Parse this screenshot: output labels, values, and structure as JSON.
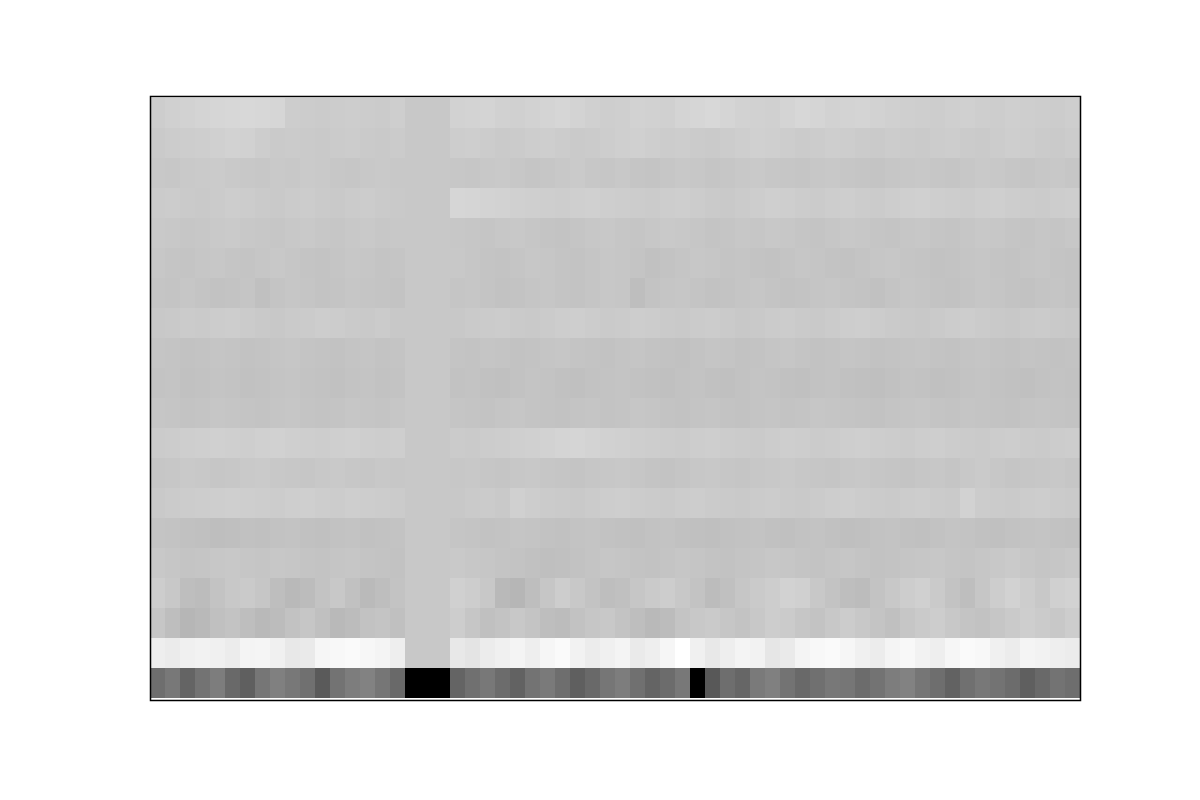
{
  "chart_data": {
    "type": "heatmap",
    "tick_labels": false,
    "cells": [
      [
        205,
        208,
        210,
        212,
        214,
        215,
        216,
        215,
        214,
        205,
        204,
        203,
        204,
        205,
        204,
        203,
        206,
        200,
        200,
        200,
        210,
        211,
        212,
        209,
        208,
        210,
        212,
        214,
        211,
        208,
        206,
        207,
        210,
        209,
        208,
        212,
        214,
        216,
        213,
        210,
        209,
        208,
        212,
        215,
        213,
        210,
        211,
        212,
        210,
        208,
        207,
        206,
        205,
        207,
        208,
        206,
        205,
        207,
        206,
        205,
        204,
        206
      ],
      [
        202,
        204,
        205,
        206,
        208,
        210,
        209,
        205,
        202,
        203,
        202,
        201,
        203,
        204,
        202,
        201,
        203,
        200,
        200,
        200,
        205,
        206,
        204,
        202,
        203,
        205,
        206,
        204,
        202,
        203,
        205,
        207,
        208,
        206,
        204,
        205,
        203,
        202,
        204,
        206,
        208,
        207,
        205,
        203,
        204,
        206,
        205,
        203,
        202,
        204,
        203,
        202,
        204,
        205,
        203,
        202,
        204,
        206,
        205,
        203,
        202,
        204
      ],
      [
        200,
        199,
        201,
        202,
        203,
        201,
        200,
        199,
        201,
        200,
        202,
        201,
        199,
        198,
        200,
        201,
        200,
        200,
        200,
        200,
        199,
        198,
        200,
        201,
        199,
        197,
        198,
        200,
        202,
        199,
        198,
        200,
        197,
        196,
        198,
        200,
        199,
        197,
        198,
        200,
        201,
        199,
        198,
        197,
        199,
        200,
        198,
        197,
        196,
        198,
        199,
        200,
        198,
        197,
        199,
        201,
        200,
        198,
        197,
        199,
        200,
        198
      ],
      [
        203,
        204,
        202,
        201,
        203,
        205,
        204,
        202,
        201,
        203,
        204,
        202,
        201,
        203,
        204,
        202,
        201,
        200,
        200,
        200,
        214,
        213,
        211,
        210,
        208,
        207,
        206,
        205,
        207,
        208,
        206,
        205,
        204,
        203,
        205,
        206,
        204,
        202,
        201,
        203,
        205,
        207,
        206,
        204,
        203,
        205,
        206,
        204,
        203,
        205,
        207,
        208,
        206,
        205,
        204,
        206,
        207,
        205,
        204,
        203,
        205,
        206
      ],
      [
        201,
        200,
        198,
        199,
        201,
        202,
        200,
        199,
        198,
        200,
        201,
        199,
        198,
        200,
        201,
        199,
        200,
        200,
        200,
        200,
        199,
        198,
        197,
        199,
        200,
        198,
        196,
        195,
        197,
        199,
        200,
        198,
        197,
        199,
        201,
        200,
        198,
        196,
        197,
        199,
        198,
        200,
        199,
        197,
        196,
        198,
        200,
        199,
        197,
        196,
        198,
        199,
        197,
        196,
        198,
        200,
        199,
        197,
        196,
        198,
        197,
        199
      ],
      [
        199,
        197,
        196,
        198,
        199,
        197,
        196,
        198,
        200,
        198,
        196,
        195,
        197,
        199,
        198,
        196,
        197,
        200,
        200,
        200,
        200,
        198,
        196,
        195,
        197,
        199,
        198,
        196,
        195,
        197,
        199,
        198,
        196,
        193,
        195,
        197,
        199,
        198,
        196,
        197,
        195,
        194,
        196,
        198,
        197,
        195,
        194,
        196,
        198,
        199,
        197,
        196,
        194,
        195,
        197,
        198,
        196,
        195,
        197,
        198,
        196,
        195
      ],
      [
        197,
        196,
        198,
        196,
        194,
        195,
        197,
        192,
        196,
        198,
        197,
        195,
        196,
        198,
        197,
        196,
        195,
        200,
        200,
        200,
        197,
        198,
        196,
        194,
        195,
        197,
        198,
        196,
        195,
        197,
        199,
        198,
        190,
        195,
        197,
        198,
        196,
        194,
        195,
        197,
        198,
        196,
        194,
        195,
        197,
        198,
        196,
        195,
        193,
        196,
        198,
        197,
        195,
        194,
        196,
        198,
        197,
        195,
        194,
        196,
        197,
        195
      ],
      [
        200,
        201,
        203,
        202,
        204,
        205,
        203,
        201,
        200,
        202,
        203,
        205,
        204,
        202,
        201,
        203,
        200,
        200,
        200,
        200,
        200,
        202,
        203,
        204,
        202,
        201,
        203,
        205,
        206,
        204,
        202,
        203,
        205,
        204,
        202,
        201,
        203,
        204,
        202,
        200,
        201,
        203,
        204,
        202,
        201,
        203,
        205,
        206,
        204,
        202,
        201,
        200,
        202,
        204,
        205,
        203,
        201,
        200,
        202,
        203,
        201,
        200
      ],
      [
        197,
        196,
        194,
        195,
        197,
        196,
        194,
        195,
        197,
        198,
        196,
        195,
        194,
        196,
        197,
        195,
        196,
        200,
        200,
        200,
        196,
        195,
        197,
        196,
        194,
        195,
        197,
        198,
        196,
        195,
        194,
        196,
        197,
        195,
        194,
        193,
        195,
        197,
        196,
        194,
        195,
        197,
        198,
        196,
        194,
        195,
        197,
        196,
        194,
        195,
        196,
        197,
        195,
        194,
        196,
        197,
        195,
        194,
        196,
        195,
        194,
        195
      ],
      [
        195,
        196,
        193,
        194,
        196,
        195,
        193,
        194,
        196,
        197,
        195,
        194,
        193,
        195,
        196,
        194,
        195,
        200,
        200,
        200,
        194,
        195,
        193,
        192,
        194,
        196,
        195,
        193,
        192,
        194,
        195,
        196,
        194,
        193,
        192,
        194,
        195,
        193,
        192,
        194,
        196,
        195,
        193,
        192,
        194,
        195,
        193,
        192,
        191,
        193,
        195,
        194,
        192,
        193,
        195,
        196,
        194,
        193,
        192,
        194,
        195,
        194
      ],
      [
        198,
        197,
        195,
        196,
        198,
        197,
        196,
        195,
        197,
        198,
        196,
        195,
        196,
        198,
        197,
        196,
        198,
        200,
        200,
        200,
        197,
        196,
        195,
        197,
        198,
        196,
        195,
        194,
        196,
        197,
        195,
        196,
        198,
        197,
        195,
        194,
        196,
        197,
        195,
        194,
        196,
        197,
        195,
        196,
        198,
        197,
        196,
        195,
        194,
        196,
        197,
        198,
        196,
        195,
        197,
        196,
        195,
        194,
        196,
        197,
        196,
        195
      ],
      [
        203,
        204,
        206,
        207,
        208,
        207,
        206,
        208,
        209,
        207,
        206,
        205,
        207,
        208,
        206,
        205,
        206,
        200,
        200,
        200,
        203,
        202,
        204,
        205,
        207,
        208,
        210,
        212,
        213,
        211,
        209,
        208,
        206,
        205,
        204,
        203,
        205,
        206,
        204,
        203,
        202,
        204,
        206,
        205,
        203,
        204,
        206,
        207,
        205,
        204,
        203,
        205,
        206,
        204,
        203,
        202,
        204,
        205,
        203,
        202,
        204,
        205
      ],
      [
        198,
        199,
        201,
        200,
        198,
        199,
        201,
        202,
        200,
        199,
        198,
        200,
        201,
        199,
        198,
        200,
        199,
        200,
        200,
        200,
        199,
        200,
        198,
        197,
        199,
        200,
        198,
        197,
        196,
        198,
        199,
        200,
        198,
        196,
        195,
        197,
        199,
        200,
        198,
        197,
        199,
        200,
        201,
        199,
        198,
        197,
        199,
        200,
        198,
        197,
        196,
        198,
        199,
        197,
        200,
        202,
        199,
        197,
        198,
        199,
        200,
        198
      ],
      [
        201,
        203,
        204,
        205,
        206,
        207,
        206,
        205,
        204,
        206,
        207,
        205,
        204,
        206,
        205,
        204,
        203,
        200,
        200,
        200,
        200,
        202,
        203,
        201,
        208,
        205,
        203,
        202,
        201,
        203,
        205,
        206,
        204,
        203,
        202,
        204,
        205,
        203,
        202,
        201,
        203,
        204,
        202,
        201,
        203,
        205,
        206,
        204,
        203,
        202,
        204,
        205,
        203,
        202,
        210,
        204,
        203,
        202,
        204,
        205,
        203,
        202
      ],
      [
        196,
        195,
        193,
        192,
        190,
        191,
        193,
        192,
        194,
        195,
        193,
        192,
        194,
        195,
        193,
        194,
        195,
        200,
        200,
        200,
        197,
        196,
        194,
        195,
        197,
        196,
        194,
        193,
        195,
        196,
        194,
        193,
        192,
        194,
        195,
        193,
        192,
        191,
        193,
        194,
        195,
        193,
        192,
        194,
        195,
        193,
        191,
        192,
        194,
        195,
        193,
        192,
        194,
        196,
        195,
        193,
        192,
        194,
        195,
        196,
        194,
        193
      ],
      [
        200,
        198,
        196,
        197,
        199,
        200,
        198,
        197,
        199,
        198,
        196,
        195,
        197,
        198,
        196,
        195,
        194,
        200,
        200,
        200,
        201,
        199,
        198,
        196,
        195,
        193,
        191,
        192,
        194,
        196,
        198,
        197,
        195,
        194,
        196,
        198,
        197,
        195,
        194,
        196,
        197,
        199,
        198,
        196,
        195,
        197,
        198,
        196,
        194,
        195,
        197,
        198,
        199,
        197,
        196,
        198,
        200,
        202,
        199,
        197,
        198,
        200
      ],
      [
        205,
        200,
        190,
        188,
        195,
        200,
        202,
        198,
        190,
        185,
        188,
        195,
        200,
        193,
        186,
        190,
        195,
        200,
        200,
        200,
        208,
        205,
        200,
        185,
        182,
        190,
        198,
        205,
        200,
        195,
        190,
        192,
        198,
        202,
        205,
        200,
        195,
        188,
        192,
        198,
        202,
        205,
        210,
        208,
        200,
        195,
        190,
        188,
        195,
        200,
        205,
        208,
        202,
        195,
        190,
        198,
        205,
        210,
        205,
        200,
        208,
        210
      ],
      [
        198,
        190,
        182,
        185,
        192,
        195,
        190,
        185,
        188,
        194,
        198,
        192,
        185,
        188,
        194,
        196,
        192,
        200,
        200,
        200,
        205,
        198,
        192,
        195,
        200,
        196,
        190,
        188,
        194,
        198,
        200,
        195,
        190,
        185,
        188,
        196,
        200,
        202,
        198,
        195,
        200,
        205,
        203,
        198,
        195,
        200,
        204,
        200,
        196,
        192,
        198,
        202,
        205,
        200,
        196,
        194,
        198,
        202,
        206,
        203,
        200,
        205
      ],
      [
        238,
        235,
        240,
        242,
        240,
        236,
        244,
        245,
        240,
        232,
        234,
        246,
        248,
        250,
        247,
        244,
        238,
        200,
        200,
        200,
        232,
        228,
        236,
        240,
        244,
        238,
        246,
        250,
        242,
        236,
        240,
        244,
        234,
        238,
        246,
        255,
        240,
        232,
        238,
        244,
        242,
        230,
        234,
        244,
        248,
        250,
        246,
        240,
        236,
        244,
        248,
        242,
        238,
        246,
        250,
        248,
        240,
        236,
        244,
        242,
        238,
        236
      ],
      [
        110,
        120,
        100,
        115,
        125,
        105,
        95,
        118,
        128,
        120,
        112,
        90,
        115,
        125,
        130,
        118,
        105,
        0,
        0,
        0,
        100,
        112,
        120,
        108,
        98,
        115,
        122,
        110,
        95,
        105,
        118,
        125,
        112,
        100,
        108,
        120,
        0,
        88,
        110,
        102,
        122,
        128,
        115,
        105,
        112,
        120,
        118,
        108,
        115,
        125,
        130,
        118,
        110,
        98,
        112,
        120,
        115,
        108,
        95,
        105,
        115,
        110
      ]
    ]
  }
}
